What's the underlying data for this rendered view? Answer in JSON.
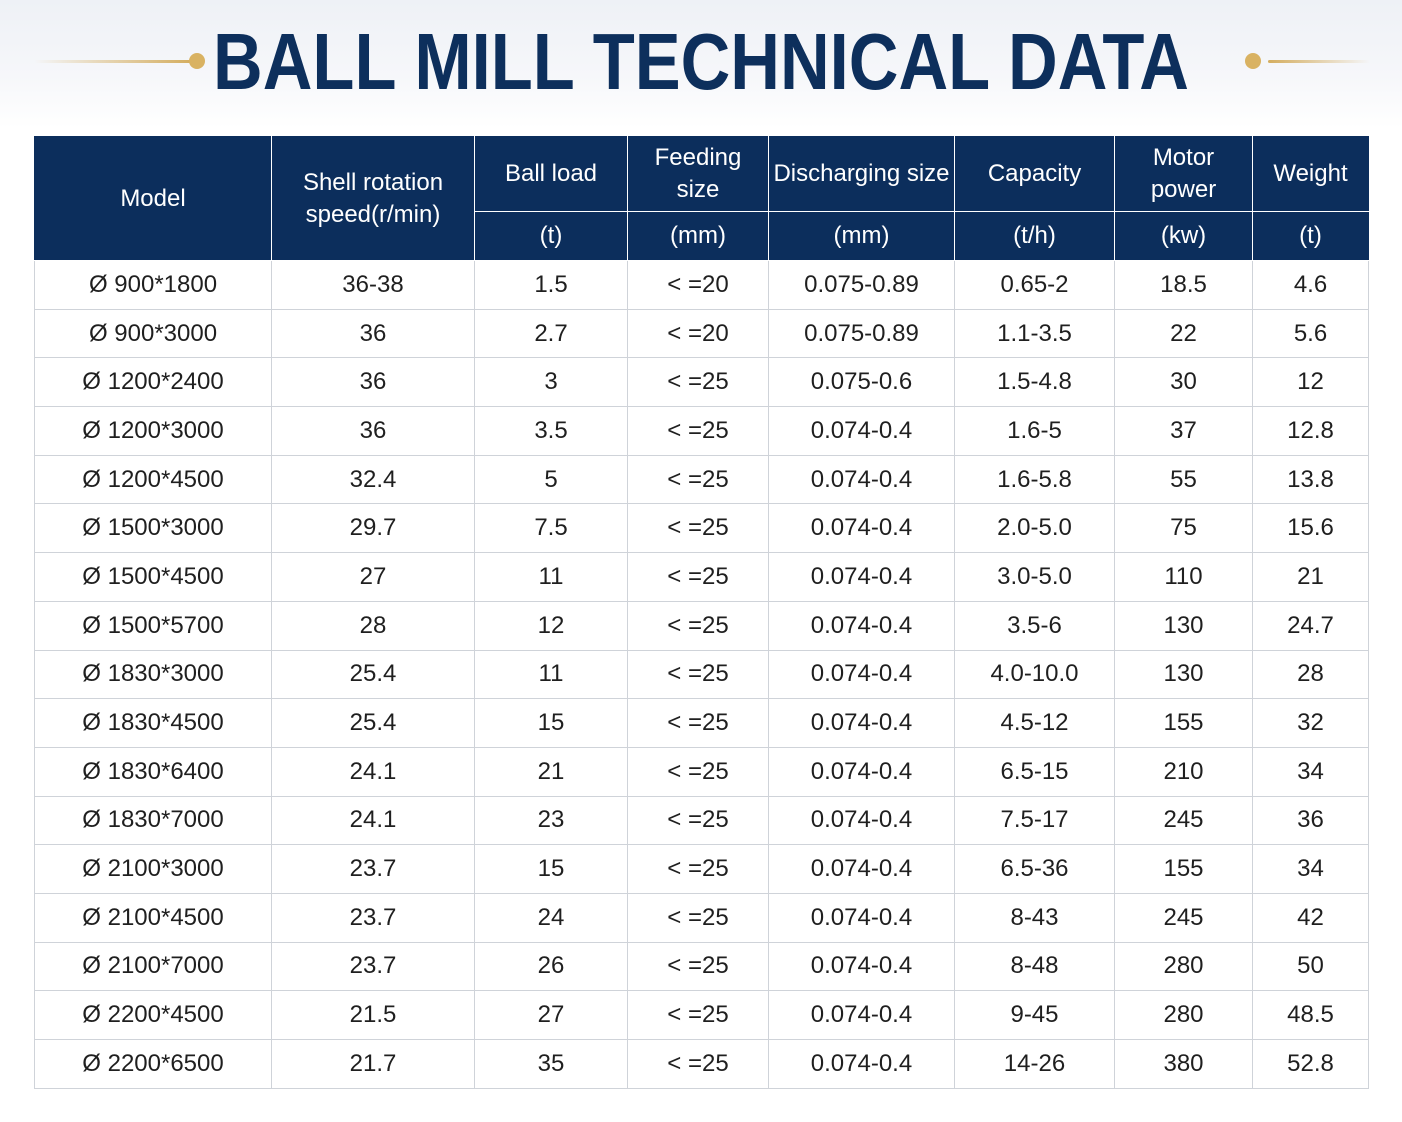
{
  "title": "BALL MILL TECHNICAL DATA",
  "colors": {
    "title": "#0d2f5c",
    "header_bg": "#0c2e5c",
    "accent_gold": "#d4ad5f"
  },
  "table": {
    "headers": [
      {
        "label": "Model",
        "unit": ""
      },
      {
        "label": "Shell rotation speed(r/min)",
        "unit": ""
      },
      {
        "label": "Ball load",
        "unit": "(t)"
      },
      {
        "label": "Feeding size",
        "unit": "(mm)"
      },
      {
        "label": "Discharging size",
        "unit": "(mm)"
      },
      {
        "label": "Capacity",
        "unit": "(t/h)"
      },
      {
        "label": "Motor power",
        "unit": "(kw)"
      },
      {
        "label": "Weight",
        "unit": "(t)"
      }
    ],
    "rows": [
      [
        "Ø 900*1800",
        "36-38",
        "1.5",
        "< =20",
        "0.075-0.89",
        "0.65-2",
        "18.5",
        "4.6"
      ],
      [
        "Ø 900*3000",
        "36",
        "2.7",
        "< =20",
        "0.075-0.89",
        "1.1-3.5",
        "22",
        "5.6"
      ],
      [
        "Ø 1200*2400",
        "36",
        "3",
        "< =25",
        "0.075-0.6",
        "1.5-4.8",
        "30",
        "12"
      ],
      [
        "Ø 1200*3000",
        "36",
        "3.5",
        "< =25",
        "0.074-0.4",
        "1.6-5",
        "37",
        "12.8"
      ],
      [
        "Ø 1200*4500",
        "32.4",
        "5",
        "< =25",
        "0.074-0.4",
        "1.6-5.8",
        "55",
        "13.8"
      ],
      [
        "Ø 1500*3000",
        "29.7",
        "7.5",
        "< =25",
        "0.074-0.4",
        "2.0-5.0",
        "75",
        "15.6"
      ],
      [
        "Ø 1500*4500",
        "27",
        "11",
        "< =25",
        "0.074-0.4",
        "3.0-5.0",
        "110",
        "21"
      ],
      [
        "Ø 1500*5700",
        "28",
        "12",
        "< =25",
        "0.074-0.4",
        "3.5-6",
        "130",
        "24.7"
      ],
      [
        "Ø 1830*3000",
        "25.4",
        "11",
        "< =25",
        "0.074-0.4",
        "4.0-10.0",
        "130",
        "28"
      ],
      [
        "Ø 1830*4500",
        "25.4",
        "15",
        "< =25",
        "0.074-0.4",
        "4.5-12",
        "155",
        "32"
      ],
      [
        "Ø 1830*6400",
        "24.1",
        "21",
        "< =25",
        "0.074-0.4",
        "6.5-15",
        "210",
        "34"
      ],
      [
        "Ø 1830*7000",
        "24.1",
        "23",
        "< =25",
        "0.074-0.4",
        "7.5-17",
        "245",
        "36"
      ],
      [
        "Ø 2100*3000",
        "23.7",
        "15",
        "< =25",
        "0.074-0.4",
        "6.5-36",
        "155",
        "34"
      ],
      [
        "Ø 2100*4500",
        "23.7",
        "24",
        "< =25",
        "0.074-0.4",
        "8-43",
        "245",
        "42"
      ],
      [
        "Ø 2100*7000",
        "23.7",
        "26",
        "< =25",
        "0.074-0.4",
        "8-48",
        "280",
        "50"
      ],
      [
        "Ø 2200*4500",
        "21.5",
        "27",
        "< =25",
        "0.074-0.4",
        "9-45",
        "280",
        "48.5"
      ],
      [
        "Ø 2200*6500",
        "21.7",
        "35",
        "< =25",
        "0.074-0.4",
        "14-26",
        "380",
        "52.8"
      ]
    ]
  }
}
